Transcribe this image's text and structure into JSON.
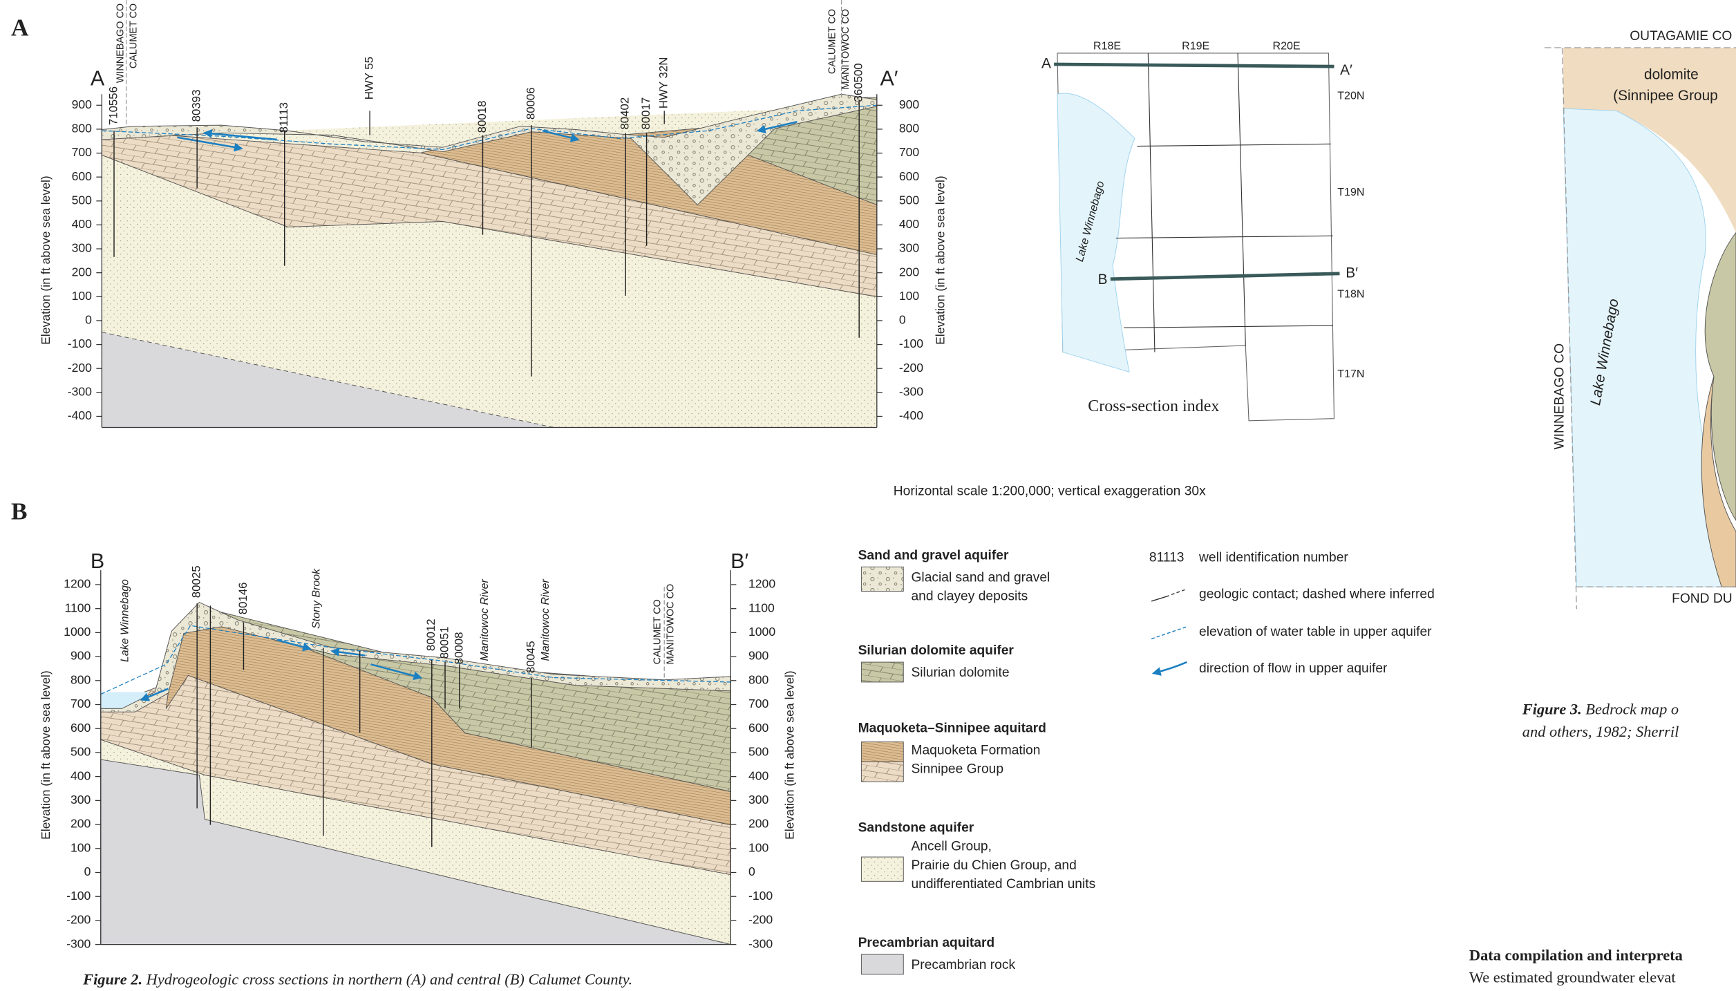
{
  "figure2": {
    "panel_a": {
      "label": "A",
      "start": "A",
      "end": "A′",
      "wells": [
        "710556",
        "80393",
        "81113",
        "80018",
        "80006",
        "80402",
        "80017",
        "360500"
      ],
      "highways": [
        "HWY 55",
        "HWY 32N"
      ],
      "counties_left": [
        "WINNEBAGO CO",
        "CALUMET CO"
      ],
      "counties_right": [
        "CALUMET CO",
        "MANITOWOC CO"
      ],
      "yticks": [
        900,
        800,
        700,
        600,
        500,
        400,
        300,
        200,
        100,
        0,
        -100,
        -200,
        -300,
        -400
      ],
      "y_label": "Elevation (in ft above sea level)"
    },
    "panel_b": {
      "label": "B",
      "start": "B",
      "end": "B′",
      "wells": [
        "80025",
        "80146",
        "80012",
        "80051",
        "80008",
        "80045"
      ],
      "water_labels": [
        "Lake Winnebago",
        "Stony Brook",
        "Manitowoc River",
        "Manitowoc River"
      ],
      "counties": [
        "CALUMET CO",
        "MANITOWOC CO"
      ],
      "yticks": [
        1200,
        1100,
        1000,
        900,
        800,
        700,
        600,
        500,
        400,
        300,
        200,
        100,
        0,
        -100,
        -200,
        -300
      ],
      "y_label": "Elevation (in ft above sea level)"
    },
    "index_map": {
      "ranges": [
        "R18E",
        "R19E",
        "R20E"
      ],
      "townships": [
        "T20N",
        "T19N",
        "T18N",
        "T17N"
      ],
      "line_a": [
        "A",
        "A′"
      ],
      "line_b": [
        "B",
        "B′"
      ],
      "lake": "Lake Winnebago",
      "title": "Cross-section index"
    },
    "scale_note": "Horizontal scale 1:200,000; vertical exaggeration 30x",
    "legend": {
      "groups": [
        {
          "title": "Sand and gravel aquifer",
          "items": [
            "Glacial sand and gravel",
            "and clayey deposits"
          ]
        },
        {
          "title": "Silurian dolomite aquifer",
          "items": [
            "Silurian dolomite"
          ]
        },
        {
          "title": "Maquoketa–Sinnipee aquitard",
          "items": [
            "Maquoketa Formation",
            "Sinnipee Group"
          ]
        },
        {
          "title": "Sandstone aquifer",
          "items": [
            "Ancell Group,",
            "Prairie du Chien Group, and",
            "undifferentiated Cambrian units"
          ]
        },
        {
          "title": "Precambrian aquitard",
          "items": [
            "Precambrian rock"
          ]
        }
      ],
      "symbols": [
        {
          "key": "81113",
          "label": "well identification number"
        },
        {
          "label": "geologic contact; dashed where inferred"
        },
        {
          "label": "elevation of water table in upper aquifer"
        },
        {
          "label": "direction of flow in upper aquifer"
        }
      ]
    },
    "caption": {
      "label": "Figure 2.",
      "text": " Hydrogeologic cross sections in northern (A) and central (B) Calumet County."
    }
  },
  "figure3": {
    "county_top": "OUTAGAMIE CO",
    "unit": "dolomite",
    "unit_group": "(Sinnipee Group",
    "county_left": "WINNEBAGO CO",
    "lake": "Lake Winnebago",
    "county_bottom": "FOND DU",
    "caption": {
      "label": "Figure 3.",
      "text": " Bedrock map o",
      "line2": "and others, 1982; Sherril"
    }
  },
  "body_text": {
    "heading": "Data compilation and interpreta",
    "line": "We estimated groundwater elevat"
  }
}
